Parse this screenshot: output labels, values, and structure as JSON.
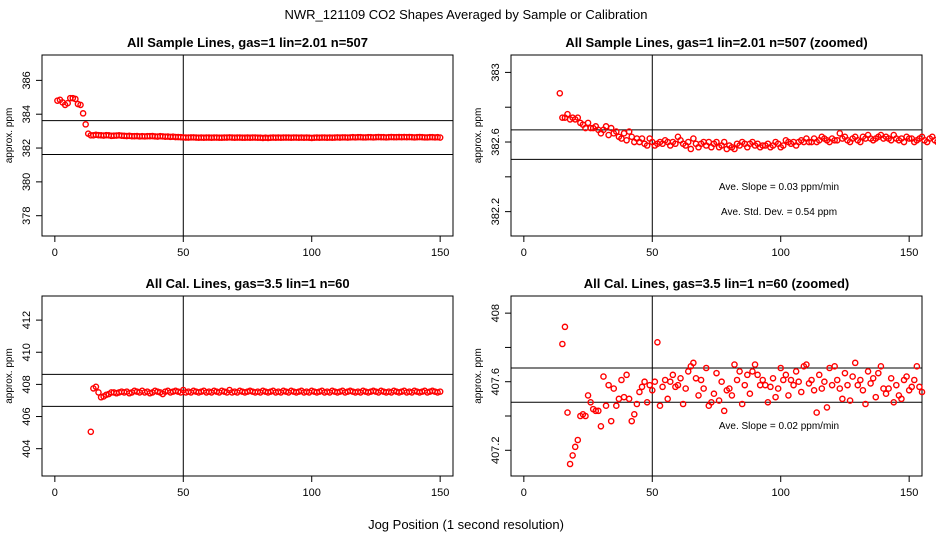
{
  "figure": {
    "title": "NWR_121109  CO2 Shapes Averaged by Sample or Calibration",
    "xlabel": "Jog Position (1 second resolution)"
  },
  "chart_data": [
    {
      "type": "scatter",
      "title": "All Sample Lines, gas=1 lin=2.01 n=507",
      "ylabel": "approx. ppm",
      "xlim": [
        -5,
        155
      ],
      "ylim": [
        376.8,
        387.5
      ],
      "xticks": [
        0,
        50,
        100,
        150
      ],
      "yticks": [
        378,
        380,
        382,
        384,
        386
      ],
      "color": "#ff0000",
      "vline": 50,
      "hlines": [
        383.62,
        381.62
      ],
      "annotations": [],
      "series": [
        {
          "x_start": 1,
          "values": [
            384.8,
            384.85,
            384.7,
            384.55,
            384.65,
            384.95,
            384.95,
            384.9,
            384.6,
            384.55,
            384.05,
            383.4,
            382.85,
            382.75,
            382.75,
            382.78,
            382.76,
            382.75,
            382.74,
            382.76,
            382.75,
            382.72,
            382.73,
            382.74,
            382.75,
            382.73,
            382.72,
            382.71,
            382.72,
            382.7,
            382.7,
            382.71,
            382.69,
            382.7,
            382.69,
            382.7,
            382.7,
            382.71,
            382.69,
            382.68,
            382.7,
            382.69,
            382.67,
            382.68,
            382.66,
            382.67,
            382.65,
            382.65,
            382.64,
            382.63,
            382.62,
            382.62,
            382.63,
            382.63,
            382.62,
            382.61,
            382.62,
            382.61,
            382.62,
            382.62,
            382.61,
            382.62,
            382.62,
            382.61,
            382.61,
            382.62,
            382.62,
            382.63,
            382.62,
            382.61,
            382.62,
            382.62,
            382.61,
            382.61,
            382.62,
            382.61,
            382.62,
            382.62,
            382.61,
            382.61,
            382.6,
            382.61,
            382.6,
            382.61,
            382.62,
            382.61,
            382.62,
            382.61,
            382.62,
            382.62,
            382.62,
            382.61,
            382.62,
            382.62,
            382.61,
            382.62,
            382.61,
            382.62,
            382.61,
            382.6,
            382.61,
            382.62,
            382.61,
            382.62,
            382.62,
            382.61,
            382.62,
            382.61,
            382.62,
            382.63,
            382.62,
            382.63,
            382.63,
            382.62,
            382.63,
            382.64,
            382.63,
            382.64,
            382.64,
            382.63,
            382.63,
            382.64,
            382.64,
            382.63,
            382.64,
            382.65,
            382.64,
            382.64,
            382.63,
            382.64,
            382.65,
            382.64,
            382.64,
            382.65,
            382.64,
            382.65,
            382.64,
            382.65,
            382.64,
            382.63,
            382.64,
            382.65,
            382.64,
            382.63,
            382.63,
            382.64,
            382.64,
            382.63,
            382.64,
            382.62
          ]
        }
      ]
    },
    {
      "type": "scatter",
      "title": "All Sample Lines, gas=1 lin=2.01 n=507 (zoomed)",
      "ylabel": "approx. ppm",
      "xlim": [
        -5,
        155
      ],
      "ylim": [
        382.06,
        383.1
      ],
      "xticks": [
        0,
        50,
        100,
        150
      ],
      "yticks": [
        382.2,
        382.6,
        383.0
      ],
      "yminor": [
        382.4,
        382.8
      ],
      "color": "#ff0000",
      "vline": 50,
      "hlines": [
        382.67,
        382.5
      ],
      "annotations": [
        "Ave. Slope =  0.03  ppm/min",
        "Ave. Std. Dev. =  0.54  ppm"
      ],
      "series": [
        {
          "x_start": 14,
          "values": [
            382.88,
            382.74,
            382.74,
            382.76,
            382.73,
            382.74,
            382.73,
            382.74,
            382.71,
            382.7,
            382.68,
            382.71,
            382.68,
            382.68,
            382.69,
            382.67,
            382.65,
            382.67,
            382.69,
            382.64,
            382.68,
            382.65,
            382.66,
            382.63,
            382.62,
            382.65,
            382.61,
            382.66,
            382.63,
            382.6,
            382.62,
            382.6,
            382.62,
            382.59,
            382.58,
            382.62,
            382.6,
            382.58,
            382.59,
            382.6,
            382.59,
            382.61,
            382.6,
            382.58,
            382.6,
            382.59,
            382.63,
            382.61,
            382.59,
            382.58,
            382.6,
            382.56,
            382.62,
            382.59,
            382.57,
            382.59,
            382.6,
            382.58,
            382.6,
            382.57,
            382.59,
            382.6,
            382.57,
            382.58,
            382.6,
            382.56,
            382.58,
            382.57,
            382.56,
            382.59,
            382.58,
            382.6,
            382.59,
            382.57,
            382.59,
            382.6,
            382.58,
            382.59,
            382.57,
            382.58,
            382.58,
            382.59,
            382.57,
            382.58,
            382.6,
            382.59,
            382.57,
            382.58,
            382.61,
            382.6,
            382.59,
            382.6,
            382.58,
            382.6,
            382.61,
            382.6,
            382.62,
            382.6,
            382.6,
            382.62,
            382.6,
            382.61,
            382.63,
            382.62,
            382.61,
            382.6,
            382.62,
            382.61,
            382.61,
            382.65,
            382.62,
            382.63,
            382.61,
            382.6,
            382.62,
            382.63,
            382.61,
            382.6,
            382.63,
            382.62,
            382.64,
            382.62,
            382.61,
            382.62,
            382.63,
            382.64,
            382.62,
            382.63,
            382.62,
            382.61,
            382.64,
            382.62,
            382.61,
            382.62,
            382.6,
            382.63,
            382.62,
            382.62,
            382.6,
            382.61,
            382.62,
            382.63,
            382.61,
            382.6,
            382.62,
            382.63,
            382.61,
            382.6,
            382.62,
            382.6,
            382.61,
            382.59
          ]
        }
      ]
    },
    {
      "type": "scatter",
      "title": "All Cal. Lines, gas=3.5 lin=1 n=60",
      "ylabel": "approx. ppm",
      "xlim": [
        -5,
        155
      ],
      "ylim": [
        402.3,
        413.5
      ],
      "xticks": [
        0,
        50,
        100,
        150
      ],
      "yticks": [
        404,
        406,
        408,
        410,
        412
      ],
      "color": "#ff0000",
      "vline": 50,
      "hlines": [
        408.62,
        406.63
      ],
      "annotations": [],
      "series": [
        {
          "x_start": 14,
          "values": [
            405.05,
            407.75,
            407.85,
            407.5,
            407.2,
            407.25,
            407.35,
            407.4,
            407.5,
            407.5,
            407.45,
            407.5,
            407.55,
            407.5,
            407.55,
            407.45,
            407.5,
            407.6,
            407.55,
            407.5,
            407.6,
            407.5,
            407.55,
            407.45,
            407.5,
            407.6,
            407.55,
            407.5,
            407.4,
            407.55,
            407.6,
            407.5,
            407.55,
            407.6,
            407.55,
            407.5,
            407.65,
            407.5,
            407.55,
            407.5,
            407.6,
            407.55,
            407.5,
            407.55,
            407.6,
            407.5,
            407.55,
            407.5,
            407.6,
            407.55,
            407.5,
            407.6,
            407.55,
            407.5,
            407.65,
            407.5,
            407.55,
            407.5,
            407.6,
            407.55,
            407.5,
            407.55,
            407.6,
            407.55,
            407.5,
            407.55,
            407.5,
            407.6,
            407.55,
            407.5,
            407.55,
            407.6,
            407.5,
            407.55,
            407.5,
            407.6,
            407.55,
            407.5,
            407.6,
            407.55,
            407.5,
            407.55,
            407.6,
            407.5,
            407.55,
            407.5,
            407.6,
            407.55,
            407.5,
            407.55,
            407.6,
            407.5,
            407.55,
            407.5,
            407.6,
            407.55,
            407.5,
            407.55,
            407.6,
            407.5,
            407.55,
            407.6,
            407.55,
            407.5,
            407.55,
            407.5,
            407.6,
            407.55,
            407.5,
            407.55,
            407.6,
            407.55,
            407.5,
            407.6,
            407.55,
            407.5,
            407.55,
            407.5,
            407.6,
            407.55,
            407.5,
            407.55,
            407.6,
            407.5,
            407.55,
            407.5,
            407.6,
            407.55,
            407.5,
            407.55,
            407.6,
            407.5,
            407.55,
            407.6,
            407.55,
            407.5,
            407.55
          ]
        }
      ]
    },
    {
      "type": "scatter",
      "title": "All Cal. Lines, gas=3.5 lin=1 n=60 (zoomed)",
      "ylabel": "approx. ppm",
      "xlim": [
        -5,
        155
      ],
      "ylim": [
        407.05,
        408.1
      ],
      "xticks": [
        0,
        50,
        100,
        150
      ],
      "yticks": [
        407.2,
        407.6,
        408.0
      ],
      "yminor": [
        407.4,
        407.8
      ],
      "color": "#ff0000",
      "vline": 50,
      "hlines": [
        407.68,
        407.48
      ],
      "annotations": [
        "Ave. Slope =  0.02  ppm/min"
      ],
      "series": [
        {
          "x_start": 15,
          "values": [
            407.82,
            407.92,
            407.42,
            407.12,
            407.17,
            407.22,
            407.26,
            407.4,
            407.41,
            407.4,
            407.52,
            407.48,
            407.44,
            407.43,
            407.43,
            407.34,
            407.63,
            407.46,
            407.58,
            407.37,
            407.56,
            407.46,
            407.5,
            407.61,
            407.51,
            407.64,
            407.5,
            407.37,
            407.41,
            407.47,
            407.54,
            407.57,
            407.6,
            407.48,
            407.58,
            407.55,
            407.6,
            407.83,
            407.46,
            407.57,
            407.61,
            407.5,
            407.6,
            407.64,
            407.57,
            407.58,
            407.62,
            407.47,
            407.56,
            407.66,
            407.69,
            407.71,
            407.62,
            407.52,
            407.61,
            407.56,
            407.68,
            407.46,
            407.48,
            407.53,
            407.65,
            407.49,
            407.6,
            407.43,
            407.55,
            407.56,
            407.52,
            407.7,
            407.61,
            407.66,
            407.47,
            407.58,
            407.64,
            407.53,
            407.66,
            407.7,
            407.64,
            407.58,
            407.61,
            407.58,
            407.48,
            407.57,
            407.62,
            407.51,
            407.56,
            407.68,
            407.61,
            407.64,
            407.52,
            407.61,
            407.58,
            407.66,
            407.6,
            407.54,
            407.69,
            407.7,
            407.59,
            407.61,
            407.55,
            407.42,
            407.64,
            407.56,
            407.6,
            407.45,
            407.68,
            407.58,
            407.69,
            407.61,
            407.56,
            407.5,
            407.65,
            407.58,
            407.49,
            407.63,
            407.71,
            407.58,
            407.61,
            407.55,
            407.47,
            407.66,
            407.59,
            407.62,
            407.51,
            407.65,
            407.69,
            407.56,
            407.53,
            407.56,
            407.62,
            407.48,
            407.58,
            407.52,
            407.5,
            407.61,
            407.63,
            407.55,
            407.57,
            407.61,
            407.69,
            407.57,
            407.54
          ]
        }
      ]
    }
  ]
}
